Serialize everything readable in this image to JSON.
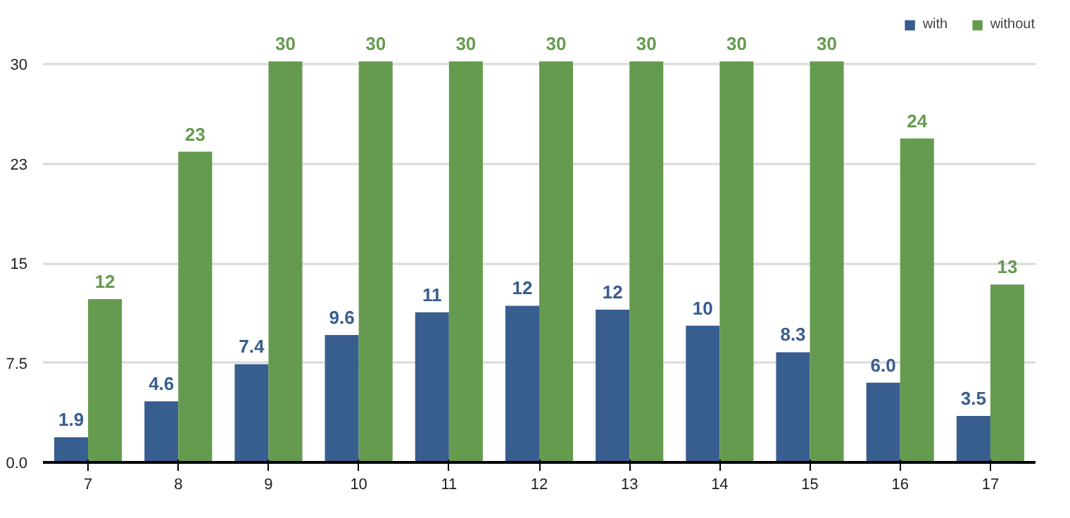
{
  "chart_data": {
    "type": "bar",
    "categories": [
      "7",
      "8",
      "9",
      "10",
      "11",
      "12",
      "13",
      "14",
      "15",
      "16",
      "17"
    ],
    "series": [
      {
        "name": "with",
        "color": "#385d8f",
        "values": [
          1.9,
          4.6,
          7.4,
          9.6,
          11.3,
          11.8,
          11.5,
          10.3,
          8.3,
          6.0,
          3.5
        ],
        "value_labels": [
          "1.9",
          "4.6",
          "7.4",
          "9.6",
          "11",
          "12",
          "12",
          "10",
          "8.3",
          "6.0",
          "3.5"
        ]
      },
      {
        "name": "without",
        "color": "#659b4f",
        "values": [
          12.3,
          23.4,
          30.2,
          30.2,
          30.2,
          30.2,
          30.2,
          30.2,
          30.2,
          24.4,
          13.4
        ],
        "value_labels": [
          "12",
          "23",
          "30",
          "30",
          "30",
          "30",
          "30",
          "30",
          "30",
          "24",
          "13"
        ]
      }
    ],
    "ylim": [
      0,
      33.5
    ],
    "yticks": [
      {
        "value": 0,
        "label": "0.0"
      },
      7.5,
      15,
      {
        "value": 22.5,
        "label": "23"
      },
      30
    ],
    "grid": "y",
    "legend": "top right"
  }
}
